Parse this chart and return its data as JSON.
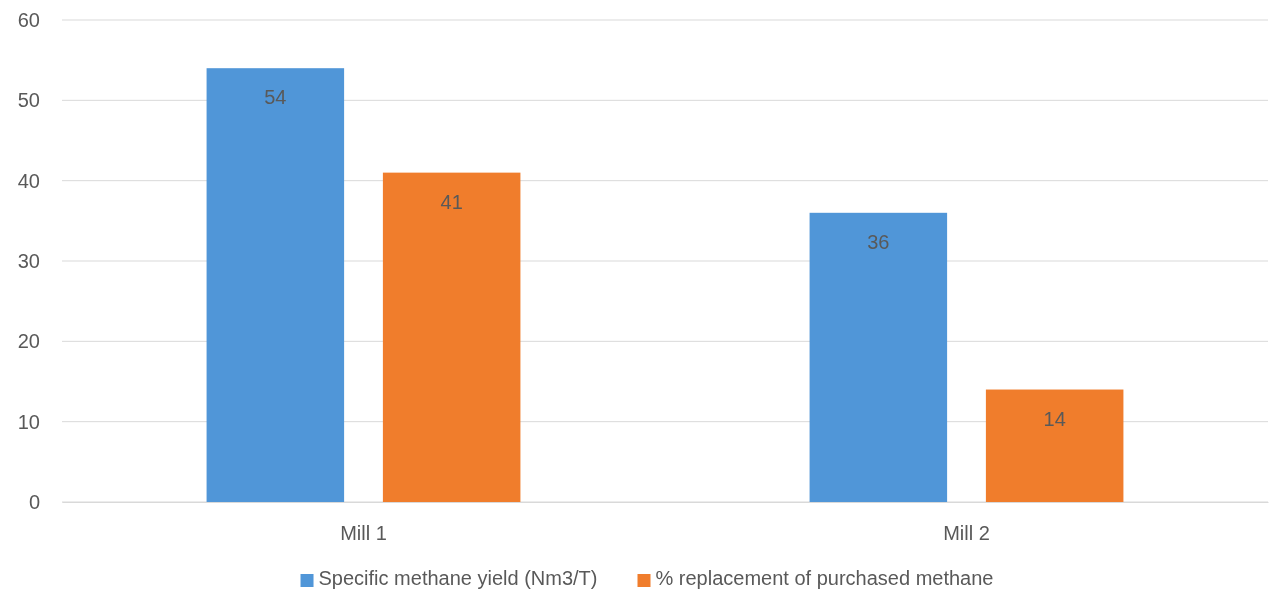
{
  "chart_data": {
    "type": "bar",
    "categories": [
      "Mill 1",
      "Mill 2"
    ],
    "series": [
      {
        "name": "Specific methane yield (Nm3/T)",
        "color": "#5096d8",
        "values": [
          54,
          36
        ]
      },
      {
        "name": "% replacement of purchased methane",
        "color": "#f07d2c",
        "values": [
          41,
          14
        ]
      }
    ],
    "ylim": [
      0,
      60
    ],
    "yticks": [
      0,
      10,
      20,
      30,
      40,
      50,
      60
    ],
    "grid": "y",
    "legend": "bottom",
    "data_labels": true
  }
}
